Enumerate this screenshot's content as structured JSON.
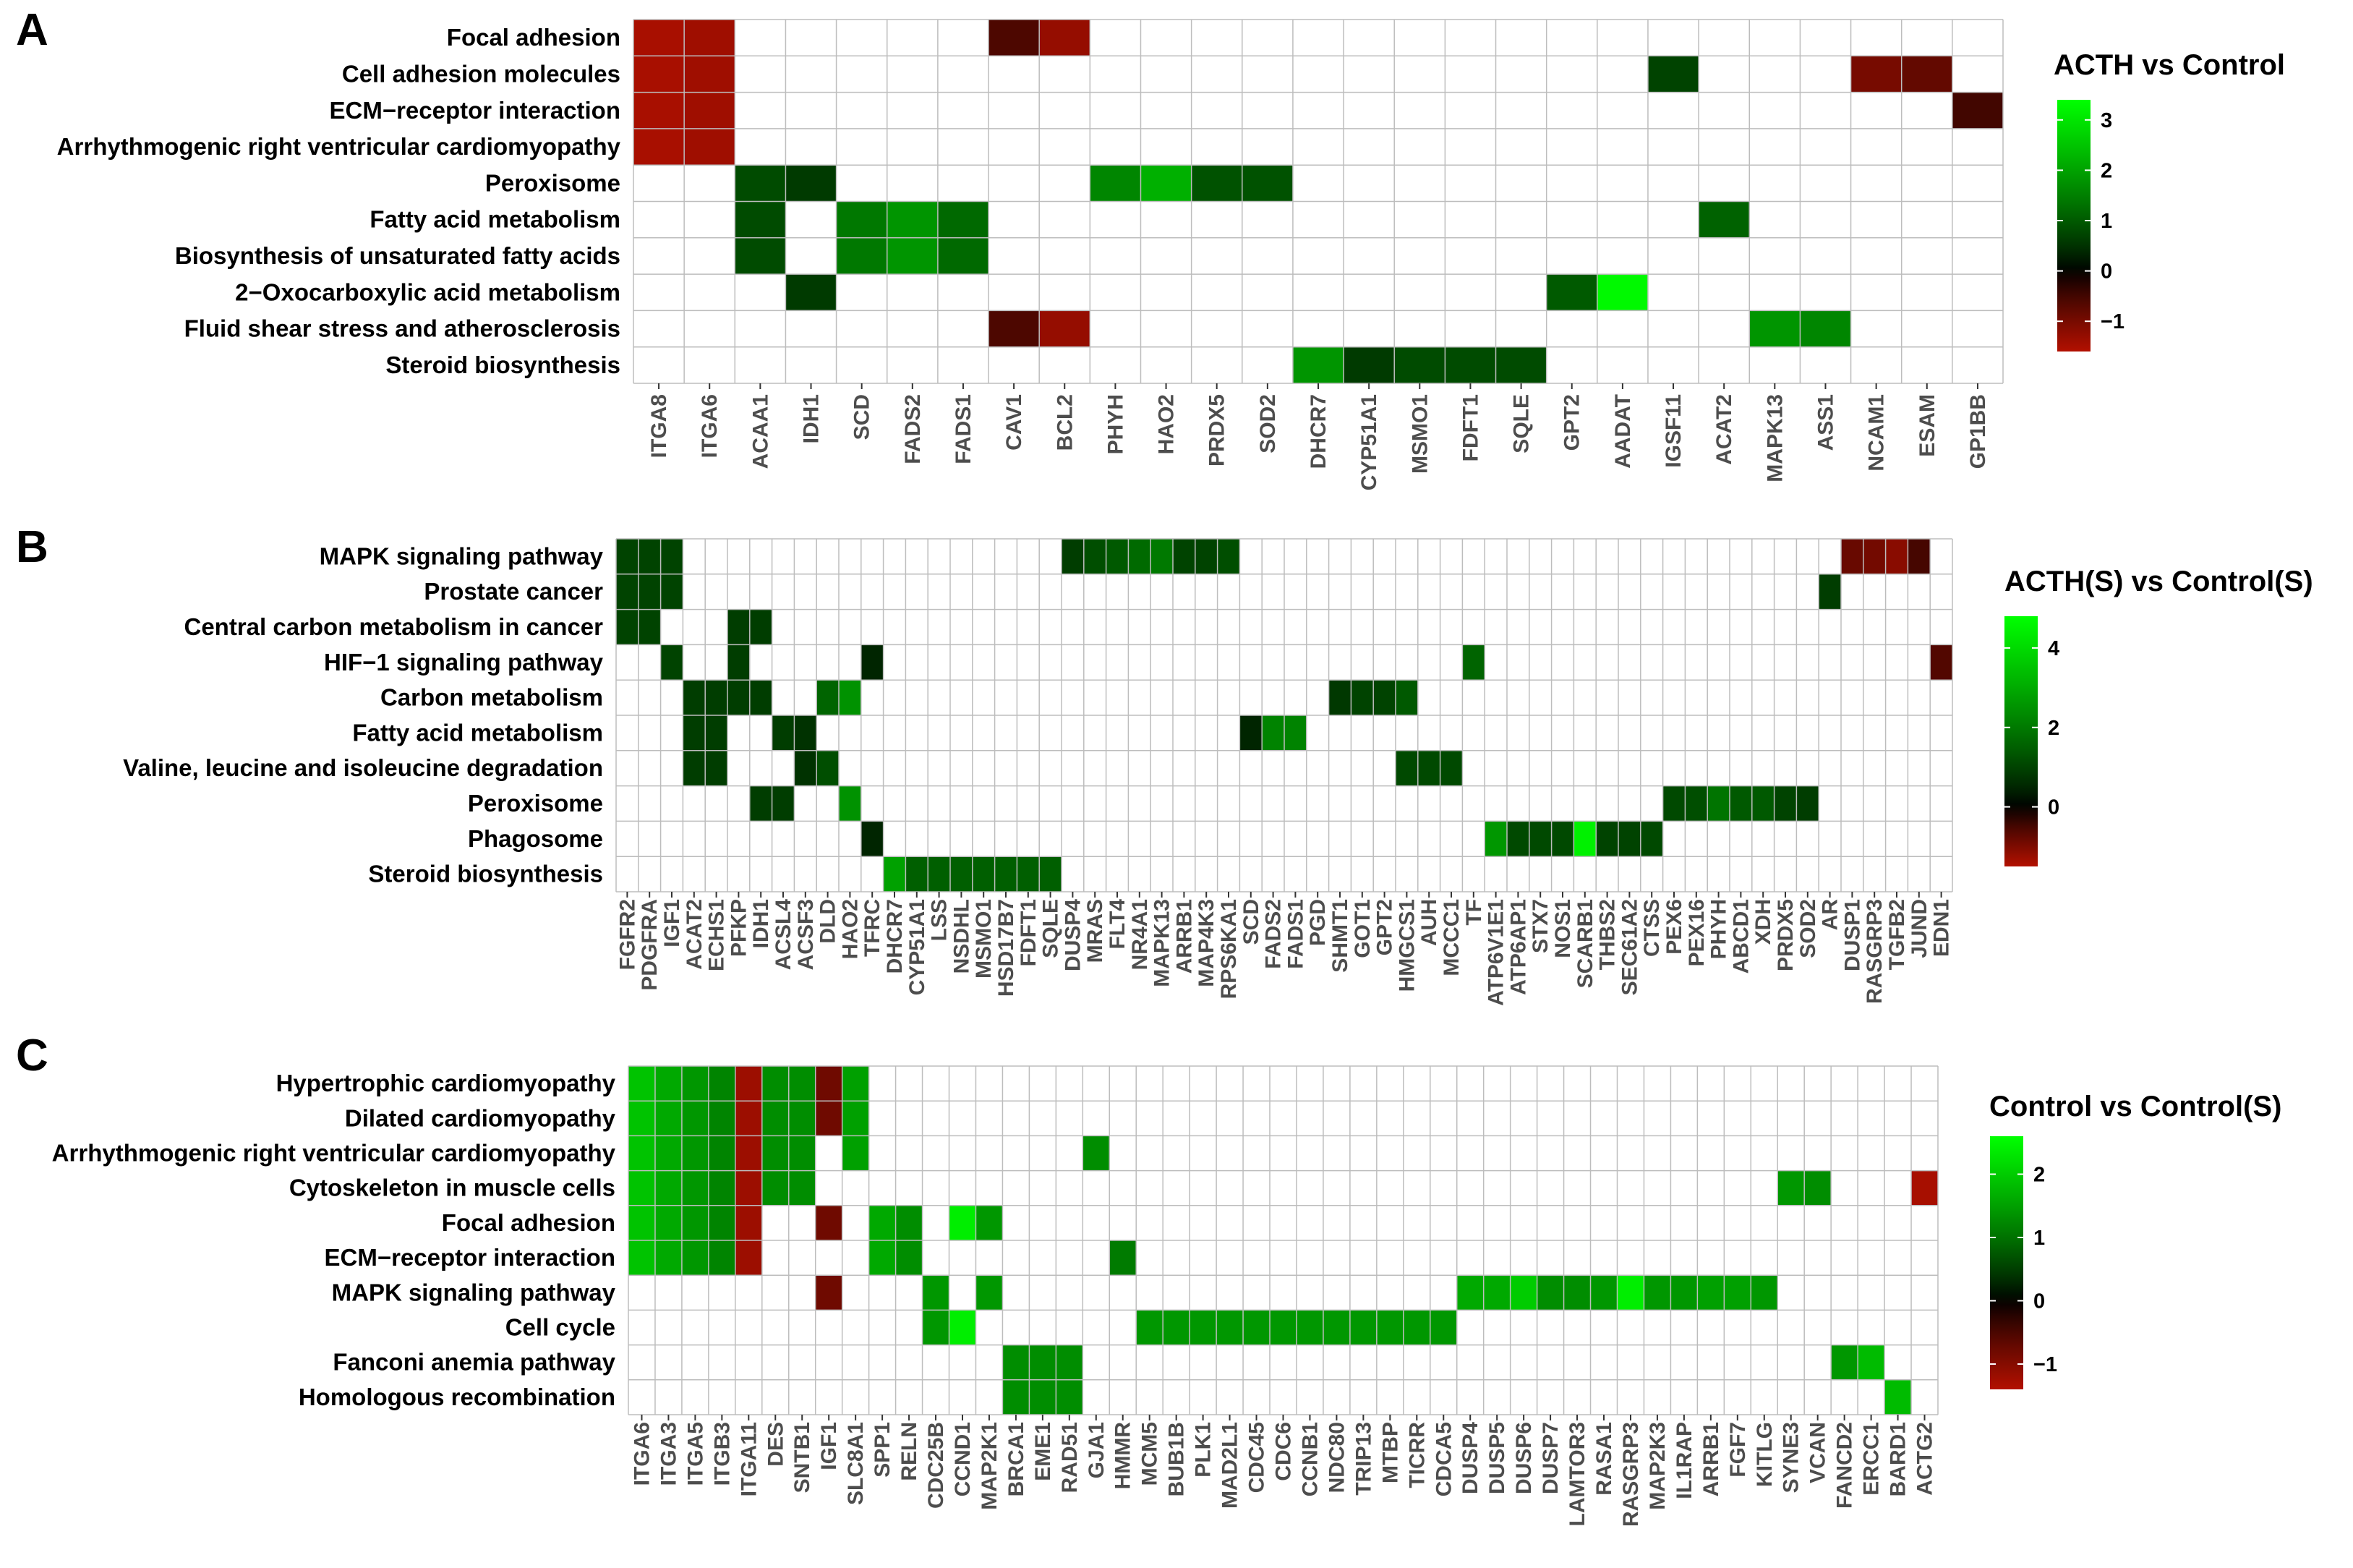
{
  "chart_data": [
    {
      "type": "heatmap",
      "panel": "A",
      "legend_title": "ACTH vs Control",
      "rows": [
        "Focal adhesion",
        "Cell adhesion molecules",
        "ECM−receptor interaction",
        "Arrhythmogenic right ventricular cardiomyopathy",
        "Peroxisome",
        "Fatty acid metabolism",
        "Biosynthesis of unsaturated fatty acids",
        "2−Oxocarboxylic acid metabolism",
        "Fluid shear stress and atherosclerosis",
        "Steroid biosynthesis"
      ],
      "columns": [
        "ITGA8",
        "ITGA6",
        "ACAA1",
        "IDH1",
        "SCD",
        "FADS2",
        "FADS1",
        "CAV1",
        "BCL2",
        "PHYH",
        "HAO2",
        "PRDX5",
        "SOD2",
        "DHCR7",
        "CYP51A1",
        "MSMO1",
        "FDFT1",
        "SQLE",
        "GPT2",
        "AADAT",
        "IGSF11",
        "ACAT2",
        "MAPK13",
        "ASS1",
        "NCAM1",
        "ESAM",
        "GP1BB"
      ],
      "cells": [
        [
          0,
          0,
          -1.5
        ],
        [
          0,
          1,
          -1.4
        ],
        [
          0,
          7,
          -0.6
        ],
        [
          0,
          8,
          -1.3
        ],
        [
          1,
          0,
          -1.5
        ],
        [
          1,
          1,
          -1.4
        ],
        [
          1,
          20,
          0.7
        ],
        [
          1,
          24,
          -1.0
        ],
        [
          1,
          25,
          -0.8
        ],
        [
          2,
          0,
          -1.5
        ],
        [
          2,
          1,
          -1.4
        ],
        [
          2,
          26,
          -0.5
        ],
        [
          3,
          0,
          -1.5
        ],
        [
          3,
          1,
          -1.4
        ],
        [
          4,
          2,
          0.8
        ],
        [
          4,
          3,
          0.6
        ],
        [
          4,
          9,
          1.6
        ],
        [
          4,
          10,
          2.2
        ],
        [
          4,
          11,
          0.9
        ],
        [
          4,
          12,
          0.9
        ],
        [
          5,
          2,
          0.8
        ],
        [
          5,
          4,
          1.4
        ],
        [
          5,
          5,
          1.8
        ],
        [
          5,
          6,
          1.2
        ],
        [
          5,
          21,
          1.1
        ],
        [
          6,
          2,
          0.8
        ],
        [
          6,
          4,
          1.4
        ],
        [
          6,
          5,
          1.8
        ],
        [
          6,
          6,
          1.2
        ],
        [
          7,
          3,
          0.6
        ],
        [
          7,
          18,
          1.0
        ],
        [
          7,
          19,
          3.3
        ],
        [
          8,
          7,
          -0.6
        ],
        [
          8,
          8,
          -1.3
        ],
        [
          8,
          22,
          1.8
        ],
        [
          8,
          23,
          1.6
        ],
        [
          9,
          13,
          1.8
        ],
        [
          9,
          14,
          0.6
        ],
        [
          9,
          15,
          0.8
        ],
        [
          9,
          16,
          0.8
        ],
        [
          9,
          17,
          0.8
        ]
      ],
      "scale_range": [
        -1.6,
        3.4
      ],
      "legend_ticks": [
        3,
        2,
        1,
        0,
        -1
      ]
    },
    {
      "type": "heatmap",
      "panel": "B",
      "legend_title": "ACTH(S) vs Control(S)",
      "rows": [
        "MAPK signaling pathway",
        "Prostate cancer",
        "Central carbon metabolism in cancer",
        "HIF−1 signaling pathway",
        "Carbon metabolism",
        "Fatty acid metabolism",
        "Valine, leucine and isoleucine degradation",
        "Peroxisome",
        "Phagosome",
        "Steroid biosynthesis"
      ],
      "columns": [
        "FGFR2",
        "PDGFRA",
        "IGF1",
        "ACAT2",
        "ECHS1",
        "PFKP",
        "IDH1",
        "ACSL4",
        "ACSF3",
        "DLD",
        "HAO2",
        "TFRC",
        "DHCR7",
        "CYP51A1",
        "LSS",
        "NSDHL",
        "MSMO1",
        "HSD17B7",
        "FDFT1",
        "SQLE",
        "DUSP4",
        "MRAS",
        "FLT4",
        "NR4A1",
        "MAPK13",
        "ARRB1",
        "MAP4K3",
        "RPS6KA1",
        "SCD",
        "FADS2",
        "FADS1",
        "PGD",
        "SHMT1",
        "GOT1",
        "GPT2",
        "HMGCS1",
        "AUH",
        "MCCC1",
        "TF",
        "ATP6V1E1",
        "ATP6AP1",
        "STX7",
        "NOS1",
        "SCARB1",
        "THBS2",
        "SEC61A2",
        "CTSS",
        "PEX6",
        "PEX16",
        "PHYH",
        "ABCD1",
        "XDH",
        "PRDX5",
        "SOD2",
        "AR",
        "DUSP1",
        "RASGRP3",
        "TGFB2",
        "JUND",
        "EDN1"
      ],
      "cells": [
        [
          0,
          0,
          1.0
        ],
        [
          0,
          1,
          1.0
        ],
        [
          0,
          2,
          1.0
        ],
        [
          0,
          20,
          0.9
        ],
        [
          0,
          21,
          1.2
        ],
        [
          0,
          22,
          1.4
        ],
        [
          0,
          23,
          1.7
        ],
        [
          0,
          24,
          2.0
        ],
        [
          0,
          25,
          1.0
        ],
        [
          0,
          26,
          1.0
        ],
        [
          0,
          27,
          1.2
        ],
        [
          0,
          55,
          -0.8
        ],
        [
          0,
          56,
          -0.9
        ],
        [
          0,
          57,
          -1.1
        ],
        [
          0,
          58,
          -0.5
        ],
        [
          1,
          0,
          1.0
        ],
        [
          1,
          1,
          1.0
        ],
        [
          1,
          2,
          1.0
        ],
        [
          1,
          54,
          0.9
        ],
        [
          2,
          0,
          1.0
        ],
        [
          2,
          1,
          1.0
        ],
        [
          2,
          5,
          0.9
        ],
        [
          2,
          6,
          0.9
        ],
        [
          3,
          2,
          1.0
        ],
        [
          3,
          5,
          0.9
        ],
        [
          3,
          11,
          0.5
        ],
        [
          3,
          38,
          1.6
        ],
        [
          3,
          59,
          -0.6
        ],
        [
          4,
          3,
          0.9
        ],
        [
          4,
          4,
          0.9
        ],
        [
          4,
          5,
          0.9
        ],
        [
          4,
          6,
          0.9
        ],
        [
          4,
          9,
          1.6
        ],
        [
          4,
          10,
          2.5
        ],
        [
          4,
          32,
          0.8
        ],
        [
          4,
          33,
          1.0
        ],
        [
          4,
          34,
          1.0
        ],
        [
          4,
          35,
          1.4
        ],
        [
          5,
          3,
          0.9
        ],
        [
          5,
          4,
          0.9
        ],
        [
          5,
          7,
          0.9
        ],
        [
          5,
          8,
          0.7
        ],
        [
          5,
          28,
          0.5
        ],
        [
          5,
          29,
          2.2
        ],
        [
          5,
          30,
          2.2
        ],
        [
          6,
          3,
          0.9
        ],
        [
          6,
          4,
          0.9
        ],
        [
          6,
          8,
          0.7
        ],
        [
          6,
          9,
          1.2
        ],
        [
          6,
          35,
          1.1
        ],
        [
          6,
          36,
          1.1
        ],
        [
          6,
          37,
          1.1
        ],
        [
          7,
          6,
          0.9
        ],
        [
          7,
          7,
          0.9
        ],
        [
          7,
          10,
          2.5
        ],
        [
          7,
          47,
          1.1
        ],
        [
          7,
          48,
          1.2
        ],
        [
          7,
          49,
          1.9
        ],
        [
          7,
          50,
          1.4
        ],
        [
          7,
          51,
          1.4
        ],
        [
          7,
          52,
          1.0
        ],
        [
          7,
          53,
          0.9
        ],
        [
          8,
          11,
          0.5
        ],
        [
          8,
          39,
          2.6
        ],
        [
          8,
          40,
          1.1
        ],
        [
          8,
          41,
          1.1
        ],
        [
          8,
          42,
          1.1
        ],
        [
          8,
          43,
          4.5
        ],
        [
          8,
          44,
          1.0
        ],
        [
          8,
          45,
          1.0
        ],
        [
          8,
          46,
          1.1
        ],
        [
          9,
          12,
          2.8
        ],
        [
          9,
          13,
          1.5
        ],
        [
          9,
          14,
          1.5
        ],
        [
          9,
          15,
          1.5
        ],
        [
          9,
          16,
          1.5
        ],
        [
          9,
          17,
          1.5
        ],
        [
          9,
          18,
          1.5
        ],
        [
          9,
          19,
          1.5
        ]
      ],
      "scale_range": [
        -1.5,
        4.8
      ],
      "legend_ticks": [
        4,
        2,
        0
      ]
    },
    {
      "type": "heatmap",
      "panel": "C",
      "legend_title": "Control vs Control(S)",
      "rows": [
        "Hypertrophic cardiomyopathy",
        "Dilated cardiomyopathy",
        "Arrhythmogenic right ventricular cardiomyopathy",
        "Cytoskeleton in muscle cells",
        "Focal adhesion",
        "ECM−receptor interaction",
        "MAPK signaling pathway",
        "Cell cycle",
        "Fanconi anemia pathway",
        "Homologous recombination"
      ],
      "columns": [
        "ITGA6",
        "ITGA3",
        "ITGA5",
        "ITGB3",
        "ITGA11",
        "DES",
        "SNTB1",
        "IGF1",
        "SLC8A1",
        "SPP1",
        "RELN",
        "CDC25B",
        "CCND1",
        "MAP2K1",
        "BRCA1",
        "EME1",
        "RAD51",
        "GJA1",
        "HMMR",
        "MCM5",
        "BUB1B",
        "PLK1",
        "MAD2L1",
        "CDC45",
        "CDC6",
        "CCNB1",
        "NDC80",
        "TRIP13",
        "MTBP",
        "TICRR",
        "CDCA5",
        "DUSP4",
        "DUSP5",
        "DUSP6",
        "DUSP7",
        "LAMTOR3",
        "RASA1",
        "RASGRP3",
        "MAP2K3",
        "IL1RAP",
        "ARRB1",
        "FGF7",
        "KITLG",
        "SYNE3",
        "VCAN",
        "FANCD2",
        "ERCC1",
        "BARD1",
        "ACTG2"
      ],
      "cells": [
        [
          0,
          0,
          1.9
        ],
        [
          0,
          1,
          1.6
        ],
        [
          0,
          2,
          1.4
        ],
        [
          0,
          3,
          1.2
        ],
        [
          0,
          4,
          -1.2
        ],
        [
          0,
          5,
          1.3
        ],
        [
          0,
          6,
          1.3
        ],
        [
          0,
          7,
          -0.8
        ],
        [
          0,
          8,
          1.5
        ],
        [
          1,
          0,
          1.9
        ],
        [
          1,
          1,
          1.6
        ],
        [
          1,
          2,
          1.4
        ],
        [
          1,
          3,
          1.2
        ],
        [
          1,
          4,
          -1.2
        ],
        [
          1,
          5,
          1.3
        ],
        [
          1,
          6,
          1.3
        ],
        [
          1,
          7,
          -0.8
        ],
        [
          1,
          8,
          1.5
        ],
        [
          2,
          0,
          1.9
        ],
        [
          2,
          1,
          1.6
        ],
        [
          2,
          2,
          1.4
        ],
        [
          2,
          3,
          1.2
        ],
        [
          2,
          4,
          -1.2
        ],
        [
          2,
          5,
          1.3
        ],
        [
          2,
          6,
          1.3
        ],
        [
          2,
          8,
          1.5
        ],
        [
          2,
          17,
          1.3
        ],
        [
          3,
          0,
          1.9
        ],
        [
          3,
          1,
          1.6
        ],
        [
          3,
          2,
          1.4
        ],
        [
          3,
          3,
          1.2
        ],
        [
          3,
          4,
          -1.2
        ],
        [
          3,
          5,
          1.3
        ],
        [
          3,
          6,
          1.3
        ],
        [
          3,
          43,
          1.4
        ],
        [
          3,
          44,
          1.3
        ],
        [
          3,
          48,
          -1.3
        ],
        [
          4,
          0,
          1.9
        ],
        [
          4,
          1,
          1.6
        ],
        [
          4,
          2,
          1.4
        ],
        [
          4,
          3,
          1.2
        ],
        [
          4,
          4,
          -1.2
        ],
        [
          4,
          7,
          -0.8
        ],
        [
          4,
          9,
          1.6
        ],
        [
          4,
          10,
          1.3
        ],
        [
          4,
          12,
          2.4
        ],
        [
          4,
          13,
          1.4
        ],
        [
          5,
          0,
          1.9
        ],
        [
          5,
          1,
          1.6
        ],
        [
          5,
          2,
          1.4
        ],
        [
          5,
          3,
          1.2
        ],
        [
          5,
          4,
          -1.2
        ],
        [
          5,
          9,
          1.6
        ],
        [
          5,
          10,
          1.3
        ],
        [
          5,
          18,
          1.1
        ],
        [
          6,
          7,
          -0.8
        ],
        [
          6,
          11,
          1.4
        ],
        [
          6,
          13,
          1.4
        ],
        [
          6,
          31,
          1.6
        ],
        [
          6,
          32,
          1.6
        ],
        [
          6,
          33,
          2.0
        ],
        [
          6,
          34,
          1.3
        ],
        [
          6,
          35,
          1.3
        ],
        [
          6,
          36,
          1.4
        ],
        [
          6,
          37,
          2.4
        ],
        [
          6,
          38,
          1.4
        ],
        [
          6,
          39,
          1.4
        ],
        [
          6,
          40,
          1.5
        ],
        [
          6,
          41,
          1.5
        ],
        [
          6,
          42,
          1.4
        ],
        [
          7,
          11,
          1.4
        ],
        [
          7,
          12,
          2.4
        ],
        [
          7,
          19,
          1.4
        ],
        [
          7,
          20,
          1.4
        ],
        [
          7,
          21,
          1.4
        ],
        [
          7,
          22,
          1.4
        ],
        [
          7,
          23,
          1.4
        ],
        [
          7,
          24,
          1.4
        ],
        [
          7,
          25,
          1.4
        ],
        [
          7,
          26,
          1.4
        ],
        [
          7,
          27,
          1.4
        ],
        [
          7,
          28,
          1.4
        ],
        [
          7,
          29,
          1.4
        ],
        [
          7,
          30,
          1.4
        ],
        [
          8,
          14,
          1.3
        ],
        [
          8,
          15,
          1.3
        ],
        [
          8,
          16,
          1.3
        ],
        [
          8,
          45,
          1.4
        ],
        [
          8,
          46,
          1.8
        ],
        [
          9,
          14,
          1.3
        ],
        [
          9,
          15,
          1.3
        ],
        [
          9,
          16,
          1.3
        ],
        [
          9,
          47,
          1.8
        ]
      ],
      "scale_range": [
        -1.4,
        2.6
      ],
      "legend_ticks": [
        2,
        1,
        0,
        -1
      ]
    }
  ],
  "colors": {
    "high": "#00ff00",
    "mid": "#000000",
    "low": "#b21000",
    "grid": "#bdbdbd"
  }
}
